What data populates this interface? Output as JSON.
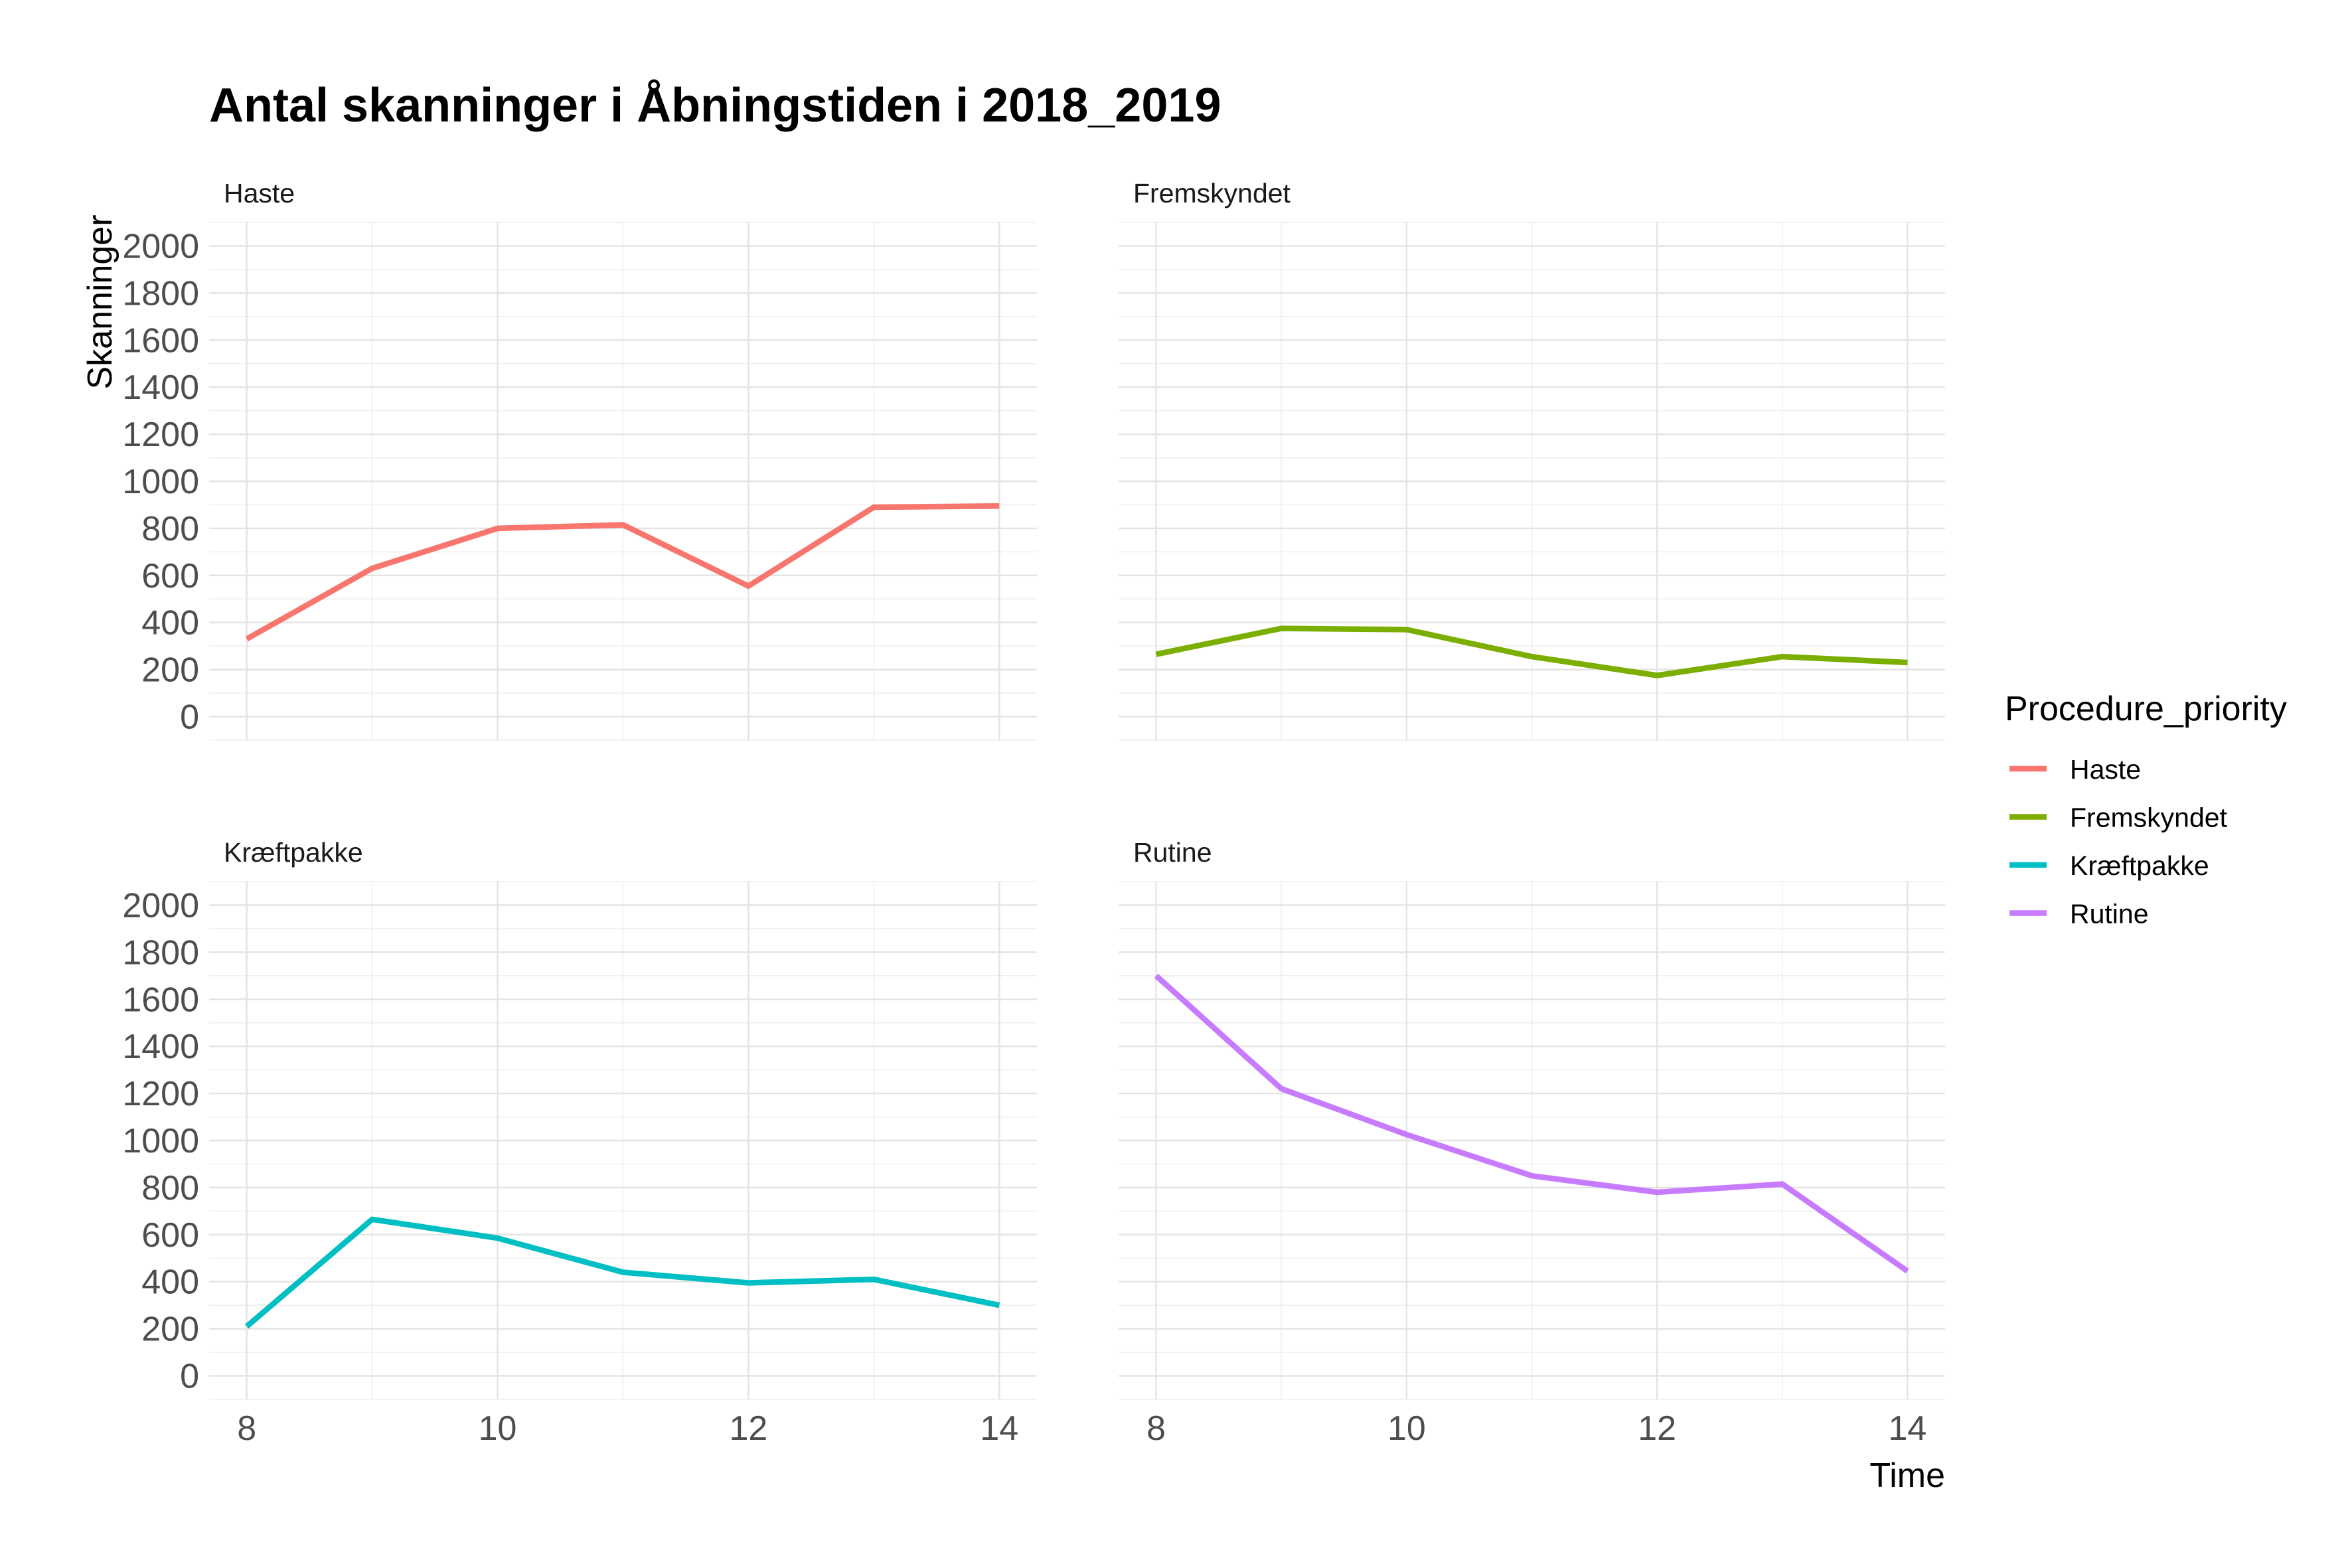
{
  "chart_data": {
    "type": "line",
    "title": "Antal skanninger i Åbningstiden i 2018_2019",
    "xlabel": "Time",
    "ylabel": "Skanninger",
    "x": [
      8,
      9,
      10,
      11,
      12,
      13,
      14
    ],
    "x_ticks": [
      8,
      10,
      12,
      14
    ],
    "y_ticks": [
      0,
      200,
      400,
      600,
      800,
      1000,
      1200,
      1400,
      1600,
      1800,
      2000
    ],
    "xlim": [
      7.7,
      14.3
    ],
    "ylim": [
      -100,
      2100
    ],
    "grid": true,
    "legend_position": "right",
    "legend_title": "Procedure_priority",
    "facets": [
      {
        "strip": "Haste",
        "series": "Haste",
        "color": "#F8766D",
        "values": [
          330,
          630,
          800,
          815,
          555,
          890,
          895
        ]
      },
      {
        "strip": "Fremskyndet",
        "series": "Fremskyndet",
        "color": "#7CAE00",
        "values": [
          265,
          375,
          370,
          255,
          175,
          255,
          230
        ]
      },
      {
        "strip": "Kræftpakke",
        "series": "Kræftpakke",
        "color": "#00BFC4",
        "values": [
          210,
          665,
          585,
          440,
          395,
          410,
          300
        ]
      },
      {
        "strip": "Rutine",
        "series": "Rutine",
        "color": "#C77CFF",
        "values": [
          1700,
          1220,
          1025,
          850,
          780,
          815,
          445
        ]
      }
    ]
  }
}
